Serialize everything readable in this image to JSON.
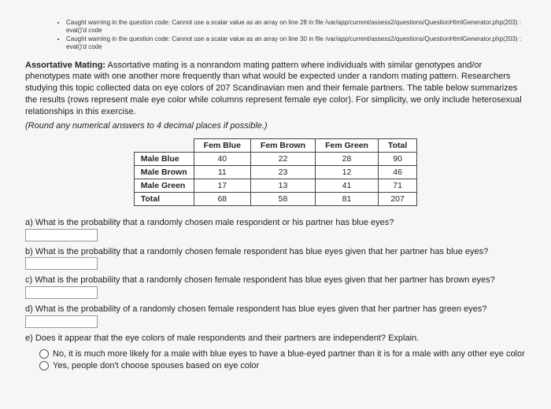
{
  "warnings": [
    "Caught warning in the question code: Cannot use a scalar value as an array on line 28 in file /var/app/current/assess2/questions/QuestionHtmlGenerator.php(203) : eval()'d code",
    "Caught warning in the question code: Cannot use a scalar value as an array on line 30 in file /var/app/current/assess2/questions/QuestionHtmlGenerator.php(203) : eval()'d code"
  ],
  "intro": {
    "bold_label": "Assortative Mating:",
    "text": " Assortative mating is a nonrandom mating pattern where individuals with similar genotypes and/or phenotypes mate with one another more frequently than what would be expected under a random mating pattern. Researchers studying this topic collected data on eye colors of 207 Scandinavian men and their female partners. The table below summarizes the results (rows represent male eye color while columns represent female eye color). For simplicity, we only include heterosexual relationships in this exercise."
  },
  "round_note": "(Round any numerical answers to 4 decimal places if possible.)",
  "table": {
    "col_headers": [
      "Fem Blue",
      "Fem Brown",
      "Fem Green",
      "Total"
    ],
    "rows": [
      {
        "label": "Male Blue",
        "cells": [
          "40",
          "22",
          "28",
          "90"
        ]
      },
      {
        "label": "Male Brown",
        "cells": [
          "11",
          "23",
          "12",
          "46"
        ]
      },
      {
        "label": "Male Green",
        "cells": [
          "17",
          "13",
          "41",
          "71"
        ]
      },
      {
        "label": "Total",
        "cells": [
          "68",
          "58",
          "81",
          "207"
        ]
      }
    ]
  },
  "questions": {
    "a": "a) What is the probability that a randomly chosen male respondent or his partner has blue eyes?",
    "b_pre": "b) What is the probability that a randomly chosen female respondent has blue eyes given that her partner has blue eyes?",
    "c_pre": "c) What is the probability that a randomly chosen female respondent has blue eyes given that her partner has brown eyes?",
    "d_pre": "d) What is the probability of a randomly chosen female respondent has blue eyes given that her partner has green eyes?",
    "e": "e) Does it appear that the eye colors of male respondents and their partners are independent? Explain."
  },
  "options": {
    "opt1": "No, it is much more likely for a male with blue eyes to have a blue-eyed partner than it is for a male with any other eye color",
    "opt2": "Yes, people don't choose spouses based on eye color"
  }
}
